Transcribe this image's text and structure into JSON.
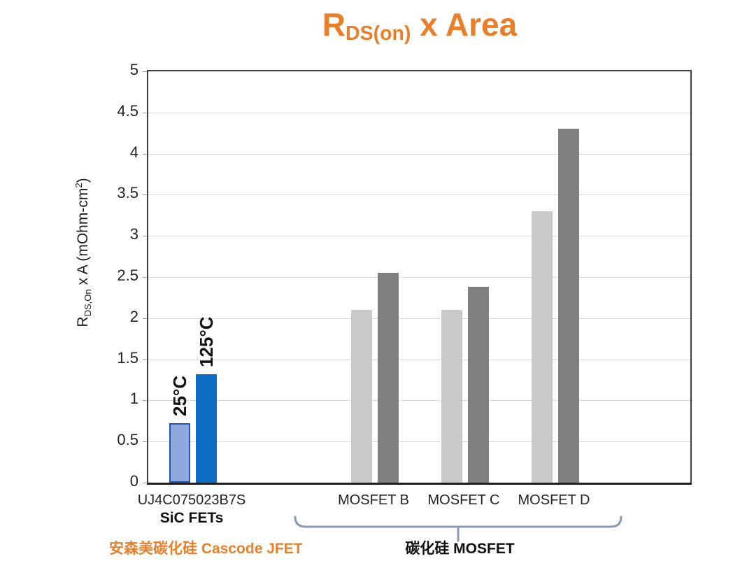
{
  "title": {
    "prefix": "R",
    "sub": "DS(on)",
    "suffix": " x Area",
    "color": "#E8802B"
  },
  "ylabel": {
    "r": "R",
    "sub": "DS,On",
    "mid": " x A (mOhm-cm",
    "sup": "2",
    "close": ")"
  },
  "chart_data": {
    "type": "bar",
    "title": "RDS(on) x Area",
    "ylabel": "RDS,On x A (mOhm-cm2)",
    "ylim": [
      0,
      5
    ],
    "ytick_step": 0.5,
    "yticks": [
      "0",
      "0.5",
      "1",
      "1.5",
      "2",
      "2.5",
      "3",
      "3.5",
      "4",
      "4.5",
      "5"
    ],
    "grid": "horizontal",
    "legend": "none",
    "series": [
      {
        "name": "25°C"
      },
      {
        "name": "125°C"
      }
    ],
    "groups": [
      {
        "label": "UJ4C075023B7S",
        "sublabel": "SiC FETs",
        "style": "jfet",
        "bar_labels": [
          "25°C",
          "125°C"
        ],
        "values": [
          0.72,
          1.32
        ]
      },
      {
        "label": "MOSFET B",
        "style": "mosfet",
        "values": [
          2.1,
          2.55
        ]
      },
      {
        "label": "MOSFET C",
        "style": "mosfet",
        "values": [
          2.1,
          2.38
        ]
      },
      {
        "label": "MOSFET D",
        "style": "mosfet",
        "values": [
          3.3,
          4.3
        ]
      }
    ],
    "colors": {
      "jfet_25_fill": "#8FA9DE",
      "jfet_25_border": "#2257B8",
      "jfet_125_fill": "#0E6DC2",
      "mosfet_25_fill": "#C9C9C9",
      "mosfet_125_fill": "#7F7F7F",
      "gridline": "#D9D9D9",
      "axis": "#404040",
      "title": "#E8802B"
    }
  },
  "annotations": {
    "jfet_caption": "安森美碳化硅 Cascode JFET",
    "jfet_caption_color": "#E8802B",
    "mosfet_caption": "碳化硅 MOSFET",
    "bracket_color": "#8A99B5"
  }
}
